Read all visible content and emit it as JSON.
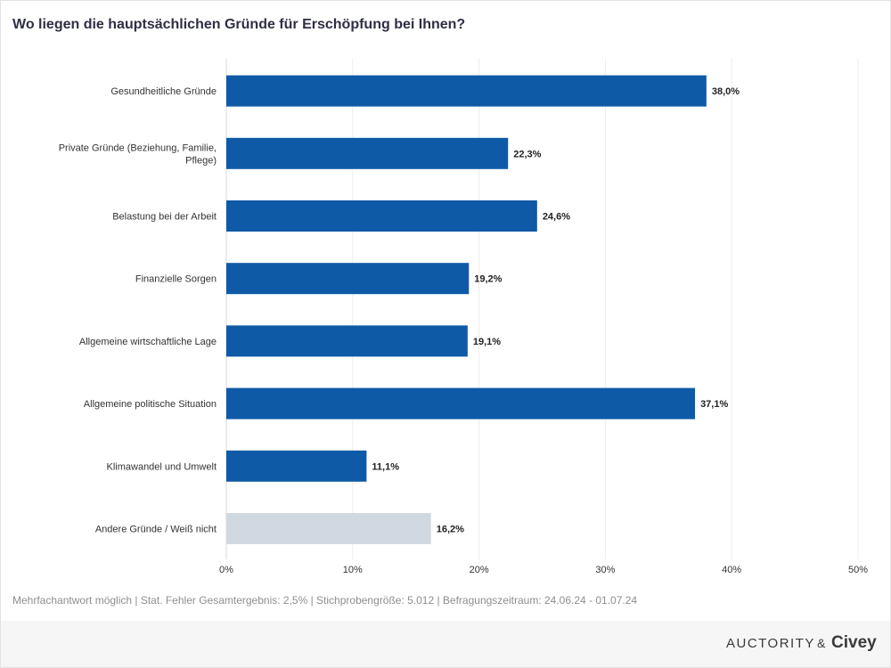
{
  "title": "Wo liegen die hauptsächlichen Gründe für Erschöpfung bei Ihnen?",
  "chart_data": {
    "type": "bar",
    "orientation": "horizontal",
    "categories": [
      "Gesundheitliche Gründe",
      "Private Gründe (Beziehung, Familie, Pflege)",
      "Belastung bei der Arbeit",
      "Finanzielle Sorgen",
      "Allgemeine wirtschaftliche Lage",
      "Allgemeine politische Situation",
      "Klimawandel und Umwelt",
      "Andere Gründe / Weiß nicht"
    ],
    "category_lines": [
      [
        "Gesundheitliche Gründe"
      ],
      [
        "Private Gründe (Beziehung, Familie,",
        "Pflege)"
      ],
      [
        "Belastung bei der Arbeit"
      ],
      [
        "Finanzielle Sorgen"
      ],
      [
        "Allgemeine wirtschaftliche Lage"
      ],
      [
        "Allgemeine politische Situation"
      ],
      [
        "Klimawandel und Umwelt"
      ],
      [
        "Andere Gründe / Weiß nicht"
      ]
    ],
    "values": [
      38.0,
      22.3,
      24.6,
      19.2,
      19.1,
      37.1,
      11.1,
      16.2
    ],
    "value_labels": [
      "38,0%",
      "22,3%",
      "24,6%",
      "19,2%",
      "19,1%",
      "37,1%",
      "11,1%",
      "16,2%"
    ],
    "bar_colors": [
      "#0e5aa7",
      "#0e5aa7",
      "#0e5aa7",
      "#0e5aa7",
      "#0e5aa7",
      "#0e5aa7",
      "#0e5aa7",
      "#d0d9e2"
    ],
    "xlim": [
      0,
      50
    ],
    "xticks": [
      0,
      10,
      20,
      30,
      40,
      50
    ],
    "xtick_labels": [
      "0%",
      "10%",
      "20%",
      "30%",
      "40%",
      "50%"
    ],
    "grid": true
  },
  "colors": {
    "bar_primary": "#0e5aa7",
    "bar_secondary": "#d0d9e2",
    "title": "#2f2f45"
  },
  "footnote": "Mehrfachantwort möglich | Stat. Fehler Gesamtergebnis: 2,5% | Stichprobengröße: 5.012 | Befragungszeitraum: 24.06.24 - 01.07.24",
  "brand": {
    "auctority": "AUCTORITY",
    "amp": "&",
    "civey": "Civey"
  }
}
